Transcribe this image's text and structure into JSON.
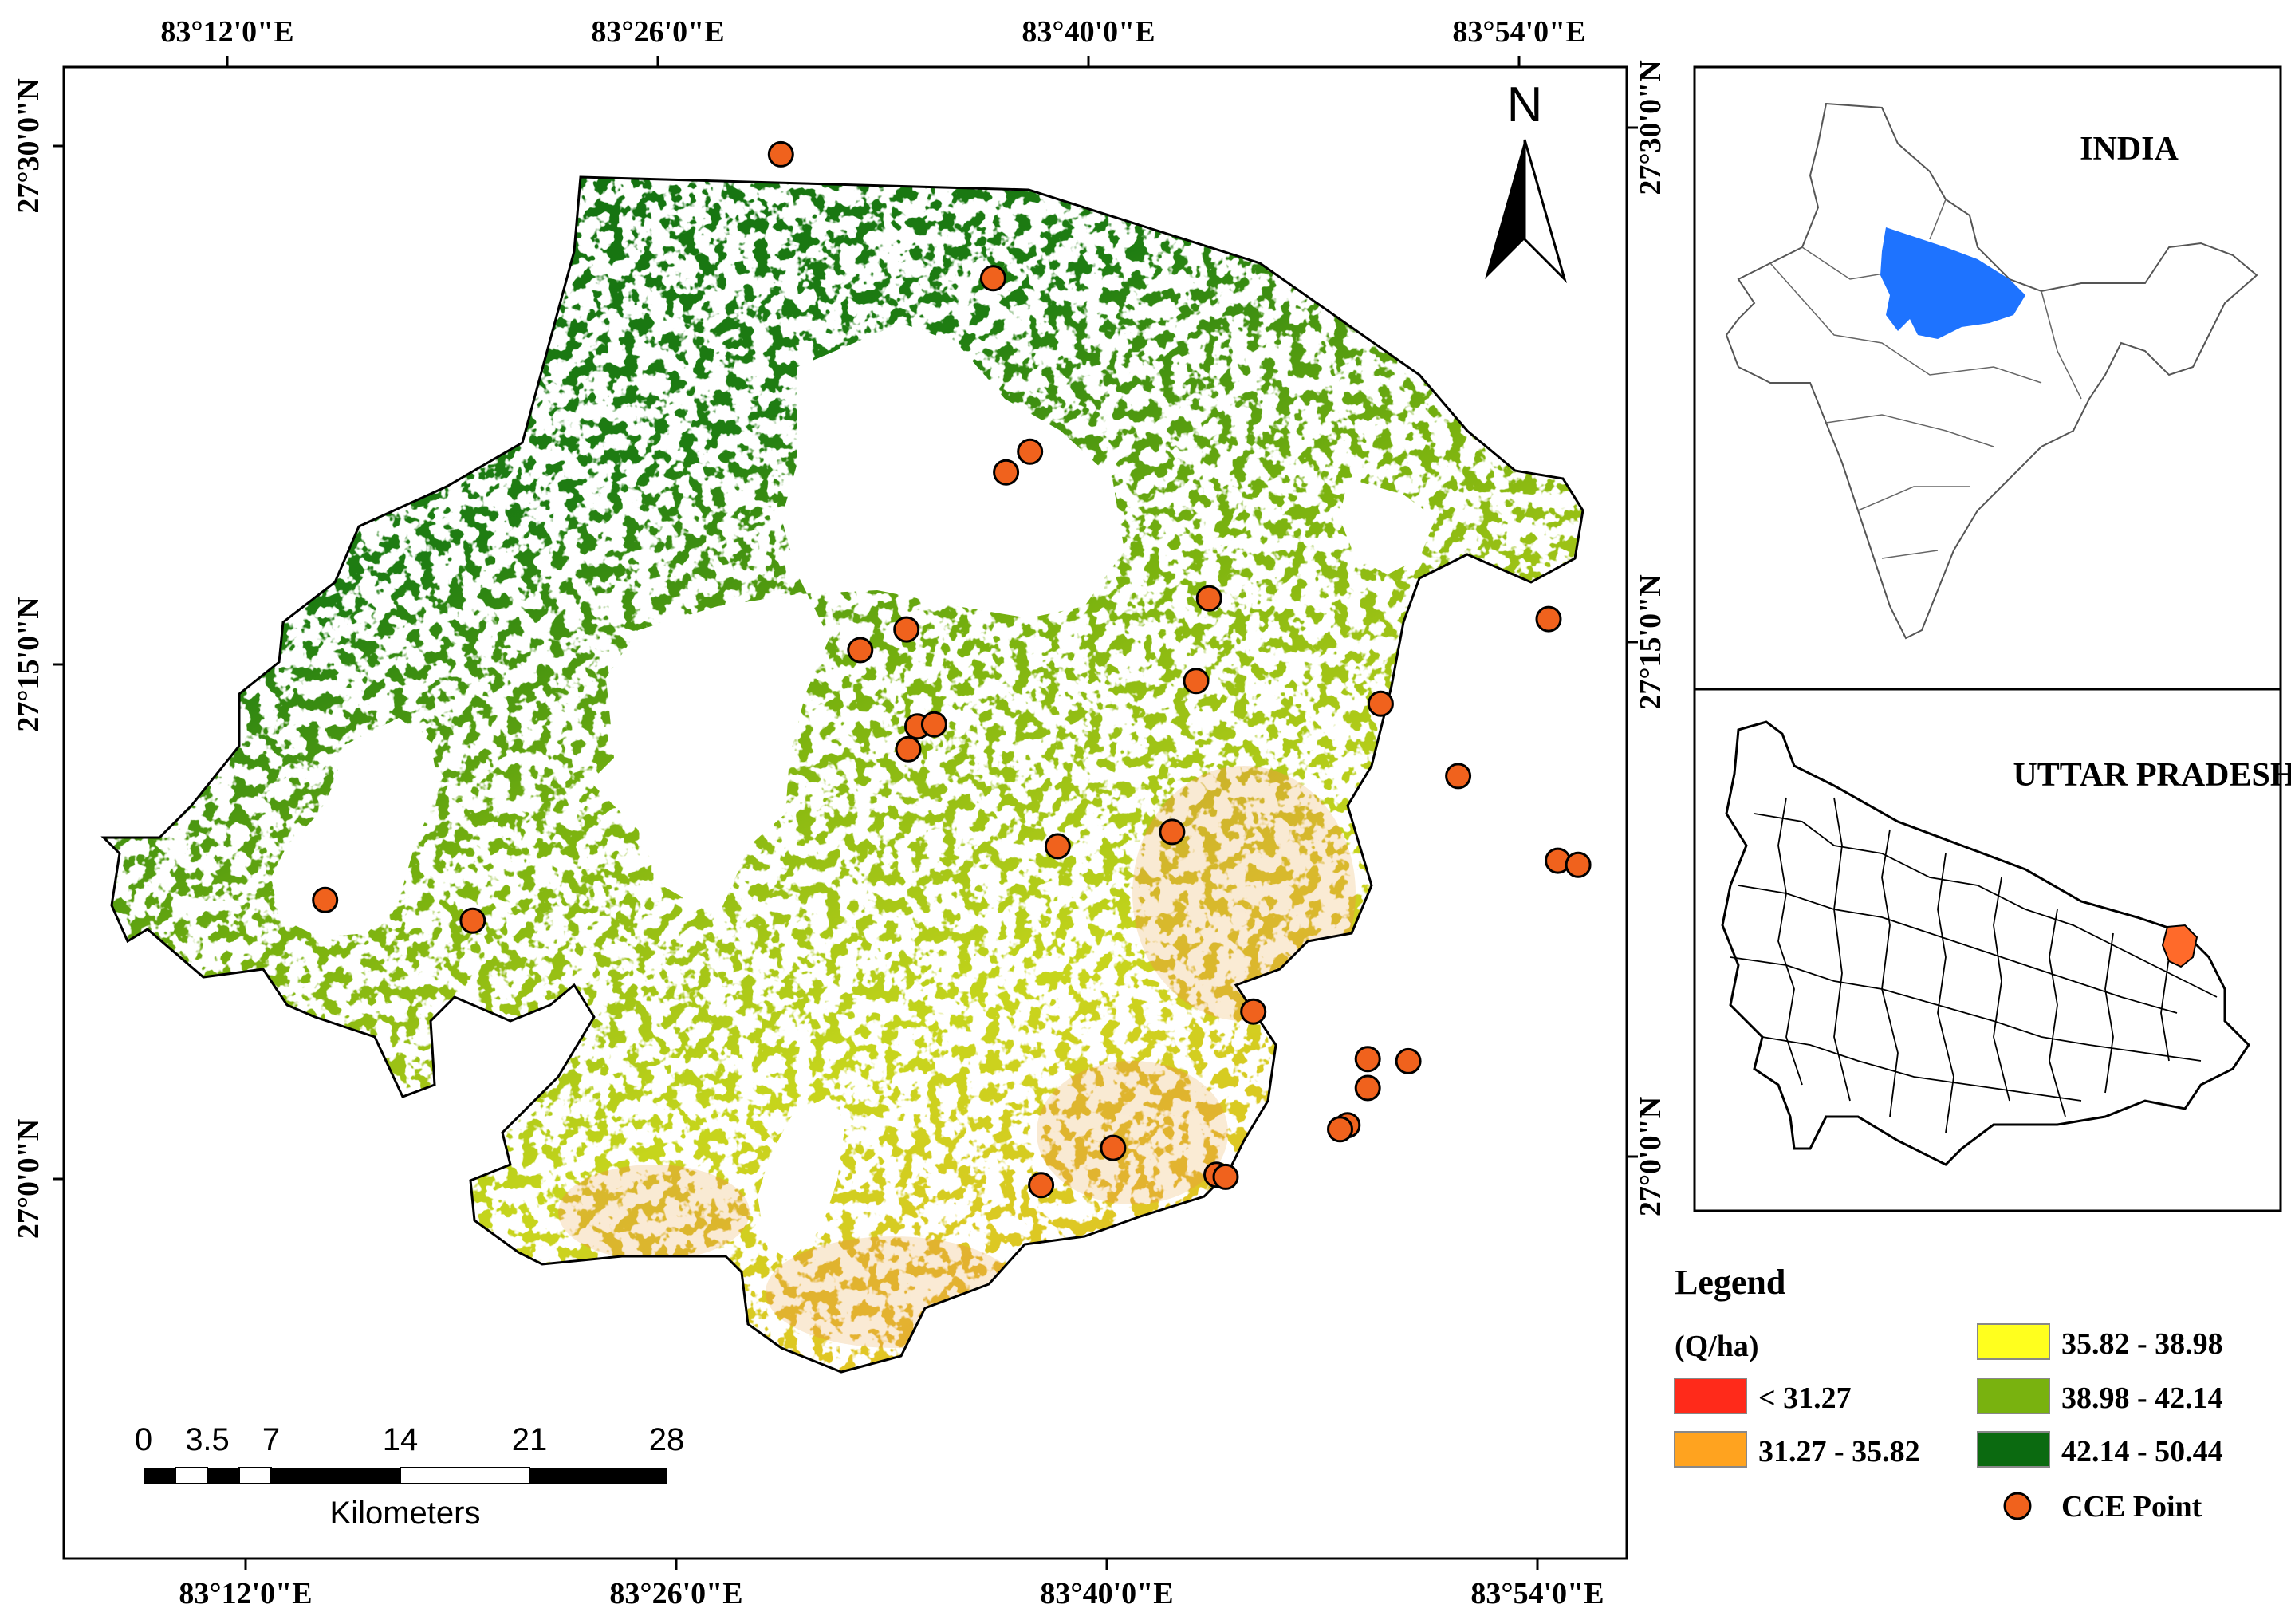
{
  "main_map": {
    "top_lon_labels": [
      "83°12'0\"E",
      "83°26'0\"E",
      "83°40'0\"E",
      "83°54'0\"E"
    ],
    "bottom_lon_labels": [
      "83°12'0\"E",
      "83°26'0\"E",
      "83°40'0\"E",
      "83°54'0\"E"
    ],
    "left_lat_labels": [
      "27°30'0\"N",
      "27°15'0\"N",
      "27°0'0\"N"
    ],
    "right_lat_labels": [
      "27°30'0\"N",
      "27°15'0\"N",
      "27°0'0\"N"
    ],
    "north_arrow": {
      "label": "N"
    },
    "scale_bar": {
      "ticks": [
        "0",
        "3.5",
        "7",
        "14",
        "21",
        "28"
      ],
      "unit": "Kilometers"
    },
    "cce_points": [
      {
        "lon": 83.615,
        "lat": 27.436
      },
      {
        "lon": 83.5,
        "lat": 27.496
      },
      {
        "lon": 83.635,
        "lat": 27.352
      },
      {
        "lon": 83.622,
        "lat": 27.342
      },
      {
        "lon": 83.732,
        "lat": 27.281
      },
      {
        "lon": 83.916,
        "lat": 27.271
      },
      {
        "lon": 83.569,
        "lat": 27.208
      },
      {
        "lon": 83.712,
        "lat": 27.168
      },
      {
        "lon": 83.568,
        "lat": 27.266
      },
      {
        "lon": 83.543,
        "lat": 27.256
      },
      {
        "lon": 83.574,
        "lat": 27.219
      },
      {
        "lon": 83.583,
        "lat": 27.22
      },
      {
        "lon": 83.725,
        "lat": 27.241
      },
      {
        "lon": 83.825,
        "lat": 27.23
      },
      {
        "lon": 83.867,
        "lat": 27.195
      },
      {
        "lon": 83.921,
        "lat": 27.154
      },
      {
        "lon": 83.932,
        "lat": 27.152
      },
      {
        "lon": 83.65,
        "lat": 27.161
      },
      {
        "lon": 83.253,
        "lat": 27.135
      },
      {
        "lon": 83.333,
        "lat": 27.125
      },
      {
        "lon": 83.756,
        "lat": 27.081
      },
      {
        "lon": 83.818,
        "lat": 27.058
      },
      {
        "lon": 83.84,
        "lat": 27.057
      },
      {
        "lon": 83.818,
        "lat": 27.044
      },
      {
        "lon": 83.807,
        "lat": 27.026
      },
      {
        "lon": 83.803,
        "lat": 27.024
      },
      {
        "lon": 83.68,
        "lat": 27.015
      },
      {
        "lon": 83.736,
        "lat": 27.002
      },
      {
        "lon": 83.741,
        "lat": 27.001
      },
      {
        "lon": 83.641,
        "lat": 26.997
      }
    ]
  },
  "inset_india": {
    "title": "INDIA",
    "highlight_color": "#1e73ff"
  },
  "inset_up": {
    "title": "UTTAR PRADESH",
    "highlight_color": "#ff6a2a"
  },
  "legend": {
    "title": "Legend",
    "unit": "(Q/ha)",
    "classes": [
      {
        "label": "< 31.27",
        "color": "#ff2a1a"
      },
      {
        "label": "31.27 - 35.82",
        "color": "#ffa31f"
      },
      {
        "label": "35.82 - 38.98",
        "color": "#ffff1e"
      },
      {
        "label": "38.98 - 42.14",
        "color": "#79b20f"
      },
      {
        "label": "42.14 - 50.44",
        "color": "#0b6a10"
      }
    ],
    "cce_label": "CCE Point",
    "cce_color": "#f0621d"
  }
}
